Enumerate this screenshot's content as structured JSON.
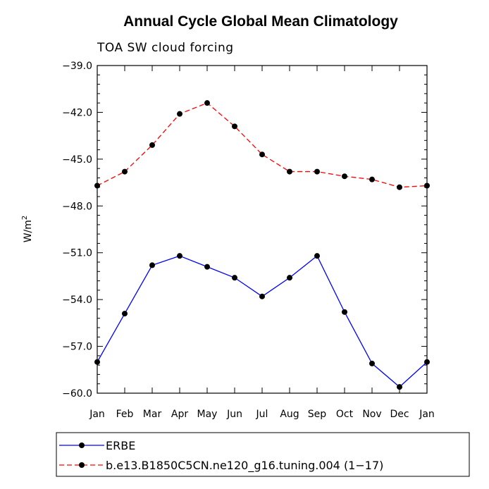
{
  "chart_data": {
    "type": "line",
    "title": "Annual Cycle Global Mean Climatology",
    "subtitle": "TOA SW cloud forcing",
    "ylabel": "W/m",
    "ylabel_superscript": "2",
    "xlabel": "",
    "categories": [
      "Jan",
      "Feb",
      "Mar",
      "Apr",
      "May",
      "Jun",
      "Jul",
      "Aug",
      "Sep",
      "Oct",
      "Nov",
      "Dec",
      "Jan"
    ],
    "ylim": [
      -60.0,
      -39.0
    ],
    "yticks": [
      -39.0,
      -42.0,
      -45.0,
      -48.0,
      -51.0,
      -54.0,
      -57.0,
      -60.0
    ],
    "ytick_labels": [
      "−39.0",
      "−42.0",
      "−45.0",
      "−48.0",
      "−51.0",
      "−54.0",
      "−57.0",
      "−60.0"
    ],
    "grid": false,
    "legend_position": "bottom",
    "series": [
      {
        "name": "ERBE",
        "color": "#0000ff",
        "dash": "solid",
        "marker": "circle",
        "values": [
          -58.0,
          -54.9,
          -51.8,
          -51.2,
          -51.9,
          -52.6,
          -53.8,
          -52.6,
          -51.2,
          -54.8,
          -58.1,
          -59.6,
          -58.0
        ]
      },
      {
        "name": "b.e13.B1850C5CN.ne120_g16.tuning.004 (1−17)",
        "color": "#ff0000",
        "dash": "dashed",
        "marker": "circle",
        "values": [
          -46.7,
          -45.8,
          -44.1,
          -42.1,
          -41.4,
          -42.9,
          -44.7,
          -45.8,
          -45.8,
          -46.1,
          -46.3,
          -46.8,
          -46.7
        ]
      }
    ]
  }
}
